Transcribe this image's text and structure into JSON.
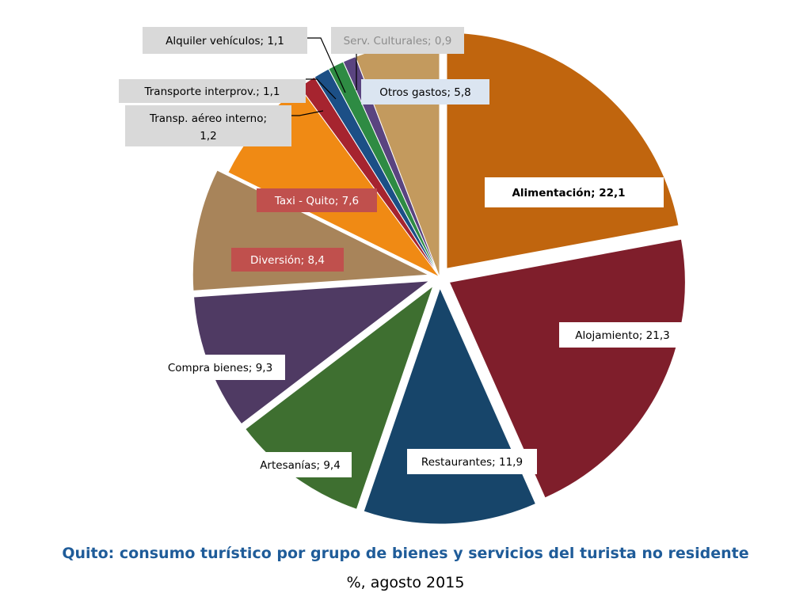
{
  "chart_data": {
    "type": "pie",
    "title": "Quito: consumo turístico por grupo de bienes y servicios del turista no residente",
    "subtitle": "%, agosto 2015",
    "slices": [
      {
        "label": "Alimentación;",
        "value_text": "22,1",
        "value": 22.1,
        "color": "#c0650e",
        "label_bg": "#ffffff",
        "label_color": "#000000",
        "bold": true
      },
      {
        "label": "Alojamiento;",
        "value_text": "21,3",
        "value": 21.3,
        "color": "#7f1e2b",
        "label_bg": "#ffffff",
        "label_color": "#000000",
        "bold": false
      },
      {
        "label": "Restaurantes;",
        "value_text": "11,9",
        "value": 11.9,
        "color": "#17456a",
        "label_bg": "#ffffff",
        "label_color": "#000000",
        "bold": false
      },
      {
        "label": "Artesanías;",
        "value_text": "9,4",
        "value": 9.4,
        "color": "#3e6f30",
        "label_bg": "#ffffff",
        "label_color": "#000000",
        "bold": false
      },
      {
        "label": "Compra bienes;",
        "value_text": "9,3",
        "value": 9.3,
        "color": "#4f3a63",
        "label_bg": "#ffffff",
        "label_color": "#000000",
        "bold": false
      },
      {
        "label": "Diversión;",
        "value_text": "8,4",
        "value": 8.4,
        "color": "#a8845a",
        "label_bg": "#c0504d",
        "label_color": "#ffffff",
        "bold": false
      },
      {
        "label": "Taxi - Quito;",
        "value_text": "7,6",
        "value": 7.6,
        "color": "#f08a14",
        "label_bg": "#c0504d",
        "label_color": "#ffffff",
        "bold": false
      },
      {
        "label": "Transp. aéreo interno;",
        "value_text": "1,2",
        "value": 1.2,
        "color": "#a6242f",
        "label_bg": "#d9d9d9",
        "label_color": "#000000",
        "bold": false
      },
      {
        "label": "Transporte interprov.;",
        "value_text": "1,1",
        "value": 1.1,
        "color": "#1c4f86",
        "label_bg": "#d9d9d9",
        "label_color": "#000000",
        "bold": false
      },
      {
        "label": "Alquiler vehículos;",
        "value_text": "1,1",
        "value": 1.1,
        "color": "#2e8b43",
        "label_bg": "#d9d9d9",
        "label_color": "#000000",
        "bold": false
      },
      {
        "label": "Serv. Culturales;",
        "value_text": "0,9",
        "value": 0.9,
        "color": "#5a4480",
        "label_bg": "#d9d9d9",
        "label_color": "#8c8c8c",
        "bold": false
      },
      {
        "label": "Otros gastos;",
        "value_text": "5,8",
        "value": 5.8,
        "color": "#c39a5e",
        "label_bg": "#dbe5f1",
        "label_color": "#000000",
        "bold": false
      }
    ]
  }
}
